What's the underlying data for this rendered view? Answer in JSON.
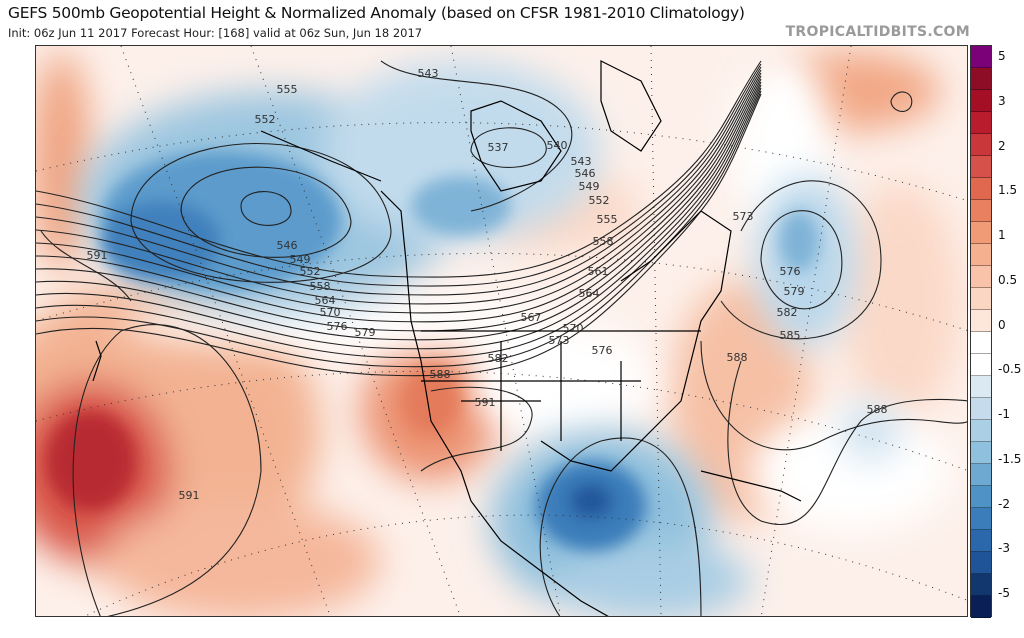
{
  "header": {
    "title": "GEFS 500mb Geopotential Height & Normalized Anomaly (based on CFSR 1981-2010 Climatology)",
    "subtitle": "Init: 06z Jun 11 2017   Forecast Hour: [168]   valid at 06z Sun, Jun 18 2017",
    "brand": "TROPICALTIDBITS.COM"
  },
  "colorbar": {
    "labels": [
      "5",
      "3",
      "2",
      "1.5",
      "1",
      "0.5",
      "0",
      "-0.5",
      "-1",
      "-1.5",
      "-2",
      "-3",
      "-5"
    ],
    "colors": [
      "#7a0177",
      "#8c0d25",
      "#a50f26",
      "#b91d2d",
      "#c9373a",
      "#d6514a",
      "#e0684f",
      "#e98160",
      "#f09a76",
      "#f5b08f",
      "#f8c3a8",
      "#fbd6c3",
      "#fde7db",
      "#ffffff",
      "#ffffff",
      "#dbe9f3",
      "#c6dcec",
      "#abcfe5",
      "#8fc0dd",
      "#6ea9d2",
      "#4f93c6",
      "#3a7dba",
      "#2b68ab",
      "#1f5498",
      "#12376f",
      "#0a1f55"
    ]
  },
  "map": {
    "contour_labels": [
      "555",
      "552",
      "543",
      "537",
      "540",
      "543",
      "546",
      "549",
      "552",
      "555",
      "558",
      "561",
      "564",
      "567",
      "570",
      "573",
      "576",
      "546",
      "549",
      "552",
      "558",
      "564",
      "570",
      "576",
      "579",
      "582",
      "588",
      "591",
      "591",
      "591",
      "573",
      "576",
      "579",
      "582",
      "585",
      "588",
      "588"
    ]
  }
}
